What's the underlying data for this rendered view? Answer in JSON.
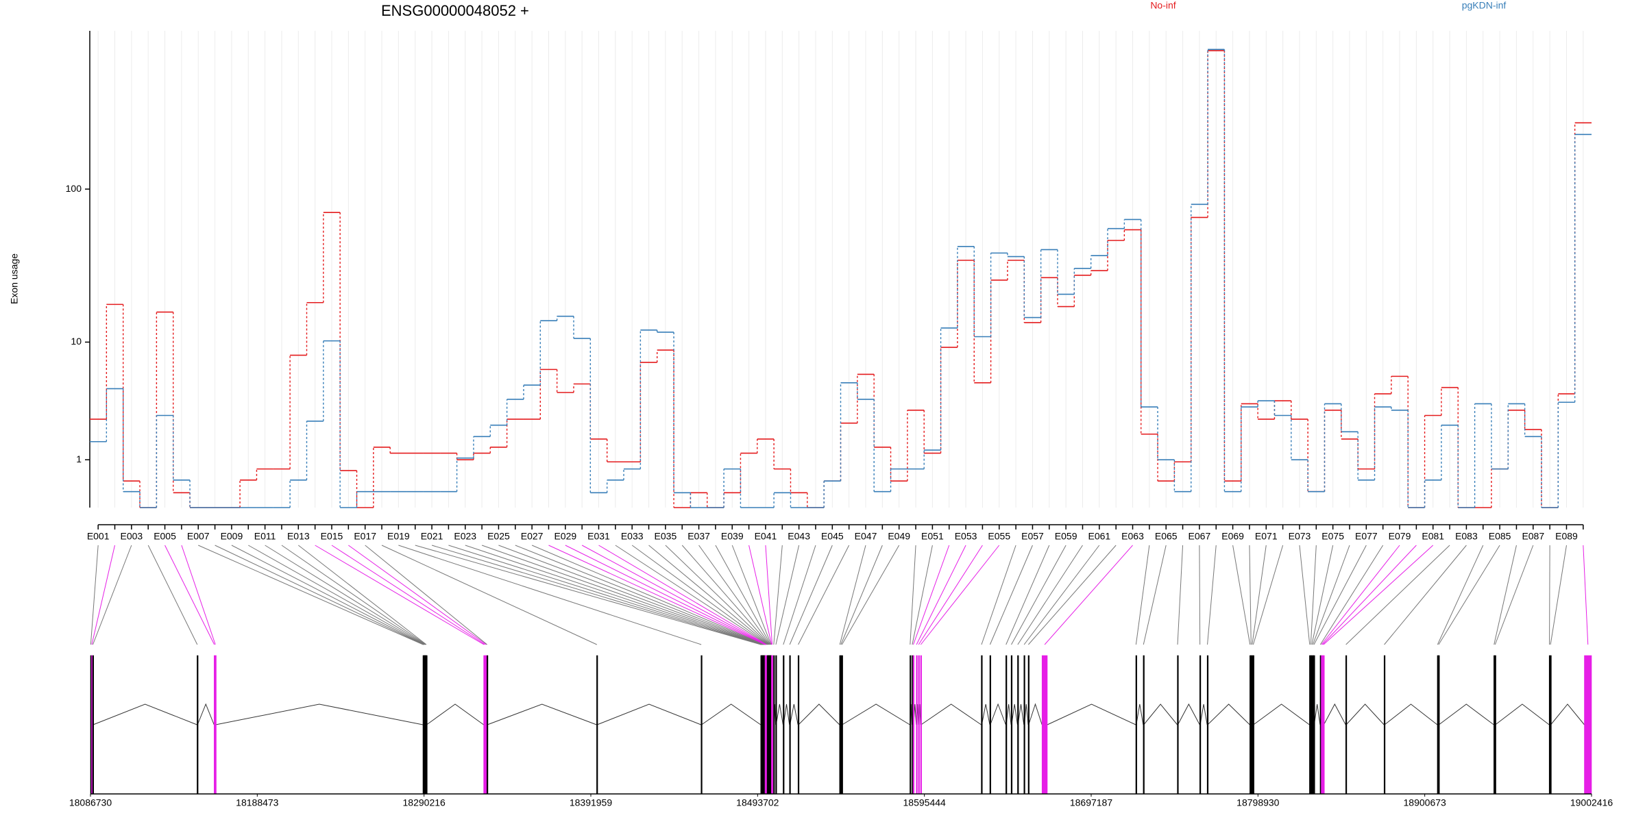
{
  "chart_data": [
    {
      "type": "step",
      "title": "ENSG00000048052 +",
      "ylabel": "Exon usage",
      "yscale": "log1p",
      "ylim": [
        0,
        1000
      ],
      "yticks": [
        1,
        10,
        100
      ],
      "grid": true,
      "categories": [
        "E001",
        null,
        "E003",
        null,
        "E005",
        null,
        "E007",
        null,
        "E009",
        null,
        "E011",
        null,
        "E013",
        null,
        "E015",
        null,
        "E017",
        null,
        "E019",
        null,
        "E021",
        null,
        "E023",
        null,
        "E025",
        null,
        "E027",
        null,
        "E029",
        null,
        "E031",
        null,
        "E033",
        null,
        "E035",
        null,
        "E037",
        null,
        "E039",
        null,
        "E041",
        null,
        "E043",
        null,
        "E045",
        null,
        "E047",
        null,
        "E049",
        null,
        "E051",
        null,
        "E053",
        null,
        "E055",
        null,
        "E057",
        null,
        "E059",
        null,
        "E061",
        null,
        "E063",
        null,
        "E065",
        null,
        "E067",
        null,
        "E069",
        null,
        "E071",
        null,
        "E073",
        null,
        "E075",
        null,
        "E077",
        null,
        "E079",
        null,
        "E081",
        null,
        "E083",
        null,
        "E085",
        null,
        "E087",
        null,
        "E089",
        null
      ],
      "series": [
        {
          "name": "No-inf",
          "color": "#e41a1c",
          "values": [
            2.6,
            18,
            0.47,
            0,
            16,
            0.24,
            0,
            0,
            0,
            0.49,
            0.75,
            0.75,
            8.1,
            18.5,
            71,
            0.71,
            0,
            1.4,
            1.2,
            1.2,
            1.2,
            1.2,
            1.0,
            1.2,
            1.4,
            2.6,
            2.6,
            6.4,
            4.3,
            5.0,
            1.7,
            0.94,
            0.94,
            7.2,
            8.8,
            0,
            0.24,
            0,
            0.24,
            1.2,
            1.7,
            0.75,
            0.24,
            0,
            0.47,
            2.4,
            5.9,
            1.4,
            0.47,
            3.1,
            1.2,
            9.2,
            35,
            5.1,
            26,
            35,
            13.6,
            27,
            17.4,
            28,
            30,
            47,
            55,
            1.9,
            0.47,
            0.94,
            66,
            750,
            0.47,
            3.5,
            2.6,
            3.7,
            2.6,
            0.26,
            3.1,
            1.7,
            0.75,
            4.2,
            5.7,
            0,
            2.8,
            4.7,
            0,
            0,
            0.75,
            3.1,
            2.1,
            0,
            4.2,
            263
          ]
        },
        {
          "name": "pgKDN-inf",
          "color": "#377eb8",
          "values": [
            1.6,
            4.6,
            0.26,
            0,
            2.8,
            0.49,
            0,
            0,
            0,
            0,
            0,
            0,
            0.49,
            2.5,
            10.2,
            0,
            0.26,
            0.26,
            0.26,
            0.26,
            0.26,
            0.26,
            1.05,
            1.8,
            2.3,
            3.8,
            4.9,
            14,
            15,
            10.6,
            0.24,
            0.49,
            0.75,
            12.1,
            11.7,
            0.24,
            0,
            0,
            0.75,
            0,
            0,
            0.24,
            0,
            0,
            0.47,
            5.1,
            3.8,
            0.26,
            0.75,
            0.75,
            1.3,
            12.5,
            43,
            10.9,
            39,
            37,
            14.7,
            41,
            21,
            31,
            37.5,
            56,
            64,
            3.3,
            1.0,
            0.26,
            80,
            763,
            0.26,
            3.3,
            3.7,
            2.8,
            1.0,
            0.26,
            3.5,
            2.0,
            0.49,
            3.3,
            3.1,
            0,
            0.49,
            2.3,
            0,
            3.5,
            0.75,
            3.5,
            1.8,
            0,
            3.6,
            222
          ]
        }
      ]
    },
    {
      "type": "gene_model",
      "xlim": [
        18086730,
        19002416
      ],
      "xticks": [
        18086730,
        18188473,
        18290216,
        18391959,
        18493702,
        18595444,
        18697187,
        18798930,
        18900673,
        19002416
      ],
      "color": "#000000",
      "significant_color": "#e61ee6",
      "exon_starts": [
        18086730,
        18087380,
        18088030,
        18151730,
        18162130,
        18162780,
        18289530,
        18289855,
        18290180,
        18290505,
        18290830,
        18291155,
        18291480,
        18326580,
        18327230,
        18327880,
        18328530,
        18395480,
        18459180,
        18495580,
        18495905,
        18496230,
        18496555,
        18496880,
        18497205,
        18497530,
        18497855,
        18498180,
        18498505,
        18498830,
        18499155,
        18499480,
        18499805,
        18500130,
        18500455,
        18500780,
        18501105,
        18501430,
        18501755,
        18502080,
        18502405,
        18503380,
        18504680,
        18509230,
        18513130,
        18518330,
        18543680,
        18544330,
        18544980,
        18586580,
        18587880,
        18588530,
        18590480,
        18591780,
        18593080,
        18630130,
        18635330,
        18645080,
        18648330,
        18652230,
        18656130,
        18658730,
        18667180,
        18724380,
        18728930,
        18749730,
        18763380,
        18767930,
        18793930,
        18794580,
        18795230,
        18795880,
        18830330,
        18830980,
        18831630,
        18832280,
        18832930,
        18836830,
        18837480,
        18838130,
        18838780,
        18852430,
        18875830,
        18908330,
        18908980,
        18942780,
        18943430,
        18976580,
        18977230,
        18998030
      ],
      "exon_lengths": [
        300,
        300,
        300,
        300,
        300,
        300,
        300,
        300,
        300,
        300,
        300,
        300,
        300,
        300,
        300,
        600,
        300,
        300,
        300,
        300,
        300,
        300,
        300,
        300,
        300,
        300,
        300,
        300,
        300,
        300,
        300,
        300,
        300,
        300,
        300,
        300,
        300,
        300,
        300,
        300,
        300,
        300,
        300,
        300,
        300,
        300,
        300,
        300,
        300,
        300,
        300,
        300,
        300,
        300,
        300,
        300,
        300,
        300,
        300,
        300,
        300,
        300,
        3250,
        300,
        300,
        300,
        300,
        300,
        300,
        300,
        300,
        300,
        300,
        300,
        300,
        300,
        300,
        300,
        300,
        300,
        300,
        300,
        300,
        300,
        300,
        300,
        300,
        300,
        300,
        4386
      ],
      "significant": [
        false,
        true,
        false,
        false,
        true,
        true,
        false,
        false,
        false,
        false,
        false,
        false,
        false,
        true,
        true,
        true,
        false,
        false,
        false,
        false,
        false,
        false,
        false,
        false,
        false,
        false,
        false,
        true,
        true,
        true,
        true,
        false,
        false,
        false,
        false,
        false,
        false,
        false,
        false,
        true,
        true,
        false,
        false,
        false,
        false,
        false,
        false,
        false,
        false,
        false,
        false,
        true,
        true,
        true,
        true,
        false,
        false,
        false,
        false,
        false,
        false,
        false,
        true,
        false,
        false,
        false,
        false,
        false,
        false,
        false,
        false,
        false,
        false,
        false,
        false,
        false,
        false,
        false,
        true,
        true,
        true,
        false,
        false,
        false,
        false,
        false,
        false,
        false,
        false,
        true
      ]
    }
  ]
}
